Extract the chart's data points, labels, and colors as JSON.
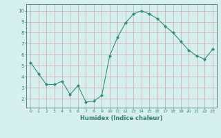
{
  "x": [
    0,
    1,
    2,
    3,
    4,
    5,
    6,
    7,
    8,
    9,
    10,
    11,
    12,
    13,
    14,
    15,
    16,
    17,
    18,
    19,
    20,
    21,
    22,
    23
  ],
  "y": [
    5.3,
    4.3,
    3.3,
    3.3,
    3.6,
    2.4,
    3.2,
    1.7,
    1.8,
    2.3,
    5.9,
    7.6,
    8.9,
    9.7,
    10.0,
    9.7,
    9.3,
    8.6,
    8.0,
    7.2,
    6.4,
    5.9,
    5.6,
    6.5
  ],
  "line_color": "#2e8b77",
  "marker": "D",
  "marker_size": 2,
  "xlim": [
    -0.5,
    23.5
  ],
  "ylim": [
    1.2,
    10.6
  ],
  "yticks": [
    2,
    3,
    4,
    5,
    6,
    7,
    8,
    9,
    10
  ],
  "xticks": [
    0,
    1,
    2,
    3,
    4,
    5,
    6,
    7,
    8,
    9,
    10,
    11,
    12,
    13,
    14,
    15,
    16,
    17,
    18,
    19,
    20,
    21,
    22,
    23
  ],
  "xlabel": "Humidex (Indice chaleur)",
  "bg_color": "#d6f0f0",
  "grid_color": "#c8a8a8",
  "tick_color": "#2e7b6e",
  "label_color": "#2e7b6e",
  "spine_color": "#5a8080"
}
